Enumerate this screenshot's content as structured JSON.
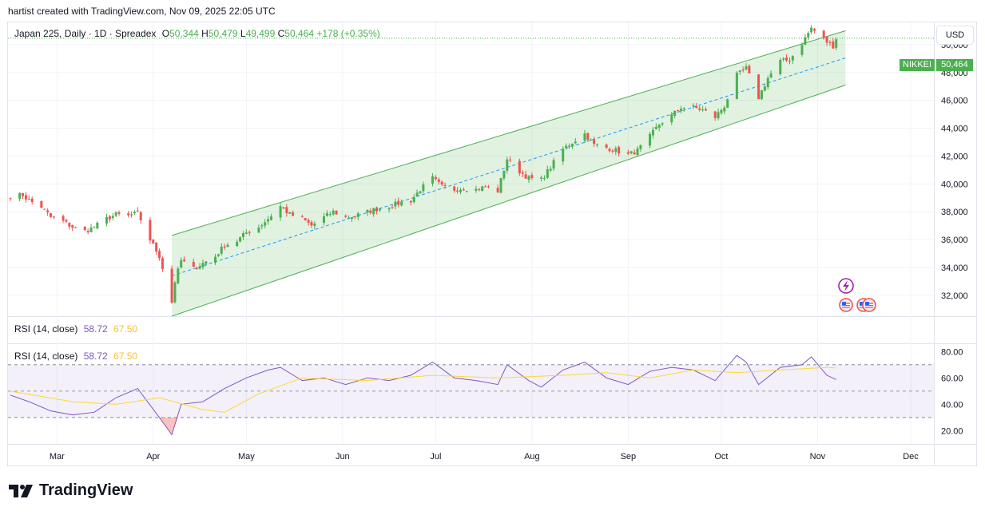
{
  "credit": "hartist created with TradingView.com, Nov 09, 2025 22:05 UTC",
  "legend": {
    "symbol": "Japan 225, Daily · 1D · Spreadex",
    "o_label": "O",
    "o_value": "50,344",
    "h_label": "H",
    "h_value": "50,479",
    "l_label": "L",
    "l_value": "49,499",
    "c_label": "C",
    "c_value": "50,464",
    "change": "+178 (+0.35%)"
  },
  "rsi_legend": {
    "label": "RSI (14, close)",
    "rsi": "58.72",
    "ma": "67.50"
  },
  "currency_button": "USD",
  "price_badge": {
    "symbol": "NIKKEI",
    "value": "50,464"
  },
  "logo_text": "TradingView",
  "colors": {
    "up": "#26a69a",
    "up_green": "#4caf50",
    "down": "#ef5350",
    "rsi": "#7e57c2",
    "rsi_ma": "#fdd835",
    "channel": "#4caf50",
    "midline": "#2196f3"
  },
  "icons": [
    "lightning-event-icon",
    "us-flag-event-icon"
  ],
  "chart_data": [
    {
      "type": "candlestick",
      "y_ticks": [
        "32,000",
        "34,000",
        "36,000",
        "38,000",
        "40,000",
        "42,000",
        "44,000",
        "46,000",
        "48,000",
        "50,000"
      ],
      "x_ticks": [
        "Mar",
        "Apr",
        "May",
        "Jun",
        "Jul",
        "Aug",
        "Sep",
        "Oct",
        "Nov",
        "Dec"
      ],
      "ylim": [
        30500,
        51600
      ],
      "grid": true,
      "last_close": 50464,
      "channel": {
        "start_date": "2025-04-07",
        "end_date": "2025-11-10",
        "upper_start": 36300,
        "upper_end": 51000,
        "lower_start": 30500,
        "lower_end": 47100
      },
      "close_series": [
        {
          "date": "2025-02-14",
          "close": 39150
        },
        {
          "date": "2025-02-18",
          "close": 39200
        },
        {
          "date": "2025-02-20",
          "close": 38800
        },
        {
          "date": "2025-02-24",
          "close": 38350
        },
        {
          "date": "2025-02-27",
          "close": 37600
        },
        {
          "date": "2025-03-03",
          "close": 37300
        },
        {
          "date": "2025-03-06",
          "close": 36900
        },
        {
          "date": "2025-03-10",
          "close": 36600
        },
        {
          "date": "2025-03-13",
          "close": 36900
        },
        {
          "date": "2025-03-17",
          "close": 37500
        },
        {
          "date": "2025-03-20",
          "close": 37800
        },
        {
          "date": "2025-03-24",
          "close": 37700
        },
        {
          "date": "2025-03-27",
          "close": 37900
        },
        {
          "date": "2025-03-31",
          "close": 36000
        },
        {
          "date": "2025-04-03",
          "close": 34800
        },
        {
          "date": "2025-04-07",
          "close": 31500
        },
        {
          "date": "2025-04-08",
          "close": 33000
        },
        {
          "date": "2025-04-10",
          "close": 34500
        },
        {
          "date": "2025-04-14",
          "close": 33900
        },
        {
          "date": "2025-04-17",
          "close": 34300
        },
        {
          "date": "2025-04-21",
          "close": 34800
        },
        {
          "date": "2025-04-24",
          "close": 35600
        },
        {
          "date": "2025-04-28",
          "close": 35900
        },
        {
          "date": "2025-05-01",
          "close": 36500
        },
        {
          "date": "2025-05-05",
          "close": 36900
        },
        {
          "date": "2025-05-08",
          "close": 37500
        },
        {
          "date": "2025-05-12",
          "close": 38400
        },
        {
          "date": "2025-05-15",
          "close": 37800
        },
        {
          "date": "2025-05-19",
          "close": 37500
        },
        {
          "date": "2025-05-22",
          "close": 37000
        },
        {
          "date": "2025-05-26",
          "close": 37600
        },
        {
          "date": "2025-05-29",
          "close": 38000
        },
        {
          "date": "2025-06-02",
          "close": 37600
        },
        {
          "date": "2025-06-05",
          "close": 37700
        },
        {
          "date": "2025-06-09",
          "close": 38000
        },
        {
          "date": "2025-06-12",
          "close": 38200
        },
        {
          "date": "2025-06-16",
          "close": 38400
        },
        {
          "date": "2025-06-19",
          "close": 38600
        },
        {
          "date": "2025-06-23",
          "close": 38800
        },
        {
          "date": "2025-06-26",
          "close": 39600
        },
        {
          "date": "2025-06-30",
          "close": 40400
        },
        {
          "date": "2025-07-03",
          "close": 39800
        },
        {
          "date": "2025-07-07",
          "close": 39600
        },
        {
          "date": "2025-07-10",
          "close": 39700
        },
        {
          "date": "2025-07-14",
          "close": 39600
        },
        {
          "date": "2025-07-17",
          "close": 39800
        },
        {
          "date": "2025-07-21",
          "close": 39500
        },
        {
          "date": "2025-07-24",
          "close": 41800
        },
        {
          "date": "2025-07-28",
          "close": 40900
        },
        {
          "date": "2025-07-31",
          "close": 40400
        },
        {
          "date": "2025-08-04",
          "close": 40300
        },
        {
          "date": "2025-08-07",
          "close": 41200
        },
        {
          "date": "2025-08-11",
          "close": 42500
        },
        {
          "date": "2025-08-14",
          "close": 43000
        },
        {
          "date": "2025-08-18",
          "close": 43600
        },
        {
          "date": "2025-08-21",
          "close": 42800
        },
        {
          "date": "2025-08-25",
          "close": 42600
        },
        {
          "date": "2025-08-28",
          "close": 42400
        },
        {
          "date": "2025-09-01",
          "close": 42100
        },
        {
          "date": "2025-09-04",
          "close": 42400
        },
        {
          "date": "2025-09-08",
          "close": 43400
        },
        {
          "date": "2025-09-11",
          "close": 44300
        },
        {
          "date": "2025-09-15",
          "close": 44900
        },
        {
          "date": "2025-09-18",
          "close": 45500
        },
        {
          "date": "2025-09-22",
          "close": 45500
        },
        {
          "date": "2025-09-25",
          "close": 45300
        },
        {
          "date": "2025-09-29",
          "close": 44800
        },
        {
          "date": "2025-10-02",
          "close": 45600
        },
        {
          "date": "2025-10-06",
          "close": 47800
        },
        {
          "date": "2025-10-09",
          "close": 48300
        },
        {
          "date": "2025-10-13",
          "close": 46200
        },
        {
          "date": "2025-10-16",
          "close": 47600
        },
        {
          "date": "2025-10-20",
          "close": 48800
        },
        {
          "date": "2025-10-23",
          "close": 48900
        },
        {
          "date": "2025-10-27",
          "close": 50100
        },
        {
          "date": "2025-10-30",
          "close": 51200
        },
        {
          "date": "2025-11-04",
          "close": 50200
        },
        {
          "date": "2025-11-06",
          "close": 49900
        },
        {
          "date": "2025-11-07",
          "close": 50464
        }
      ]
    },
    {
      "type": "line",
      "title": "RSI (14, close)",
      "y_ticks": [
        "20.00",
        "40.00",
        "60.00",
        "80.00"
      ],
      "ylim": [
        10,
        85
      ],
      "bands": [
        30,
        50,
        70
      ],
      "series": [
        {
          "name": "RSI",
          "points": [
            {
              "date": "2025-02-14",
              "v": 47
            },
            {
              "date": "2025-02-20",
              "v": 42
            },
            {
              "date": "2025-02-27",
              "v": 35
            },
            {
              "date": "2025-03-06",
              "v": 32
            },
            {
              "date": "2025-03-13",
              "v": 34
            },
            {
              "date": "2025-03-20",
              "v": 45
            },
            {
              "date": "2025-03-27",
              "v": 52
            },
            {
              "date": "2025-04-03",
              "v": 30
            },
            {
              "date": "2025-04-07",
              "v": 17
            },
            {
              "date": "2025-04-10",
              "v": 40
            },
            {
              "date": "2025-04-17",
              "v": 42
            },
            {
              "date": "2025-04-24",
              "v": 52
            },
            {
              "date": "2025-05-01",
              "v": 60
            },
            {
              "date": "2025-05-08",
              "v": 66
            },
            {
              "date": "2025-05-12",
              "v": 68
            },
            {
              "date": "2025-05-19",
              "v": 58
            },
            {
              "date": "2025-05-26",
              "v": 60
            },
            {
              "date": "2025-06-02",
              "v": 55
            },
            {
              "date": "2025-06-09",
              "v": 60
            },
            {
              "date": "2025-06-16",
              "v": 58
            },
            {
              "date": "2025-06-23",
              "v": 62
            },
            {
              "date": "2025-06-30",
              "v": 72
            },
            {
              "date": "2025-07-07",
              "v": 60
            },
            {
              "date": "2025-07-14",
              "v": 58
            },
            {
              "date": "2025-07-21",
              "v": 55
            },
            {
              "date": "2025-07-24",
              "v": 70
            },
            {
              "date": "2025-07-31",
              "v": 58
            },
            {
              "date": "2025-08-04",
              "v": 53
            },
            {
              "date": "2025-08-11",
              "v": 66
            },
            {
              "date": "2025-08-18",
              "v": 72
            },
            {
              "date": "2025-08-25",
              "v": 60
            },
            {
              "date": "2025-09-01",
              "v": 55
            },
            {
              "date": "2025-09-08",
              "v": 65
            },
            {
              "date": "2025-09-15",
              "v": 68
            },
            {
              "date": "2025-09-22",
              "v": 66
            },
            {
              "date": "2025-09-29",
              "v": 58
            },
            {
              "date": "2025-10-06",
              "v": 77
            },
            {
              "date": "2025-10-09",
              "v": 72
            },
            {
              "date": "2025-10-13",
              "v": 55
            },
            {
              "date": "2025-10-20",
              "v": 68
            },
            {
              "date": "2025-10-27",
              "v": 70
            },
            {
              "date": "2025-10-30",
              "v": 76
            },
            {
              "date": "2025-11-04",
              "v": 62
            },
            {
              "date": "2025-11-07",
              "v": 58.72
            }
          ]
        },
        {
          "name": "RSI MA",
          "points": [
            {
              "date": "2025-02-14",
              "v": 50
            },
            {
              "date": "2025-03-06",
              "v": 42
            },
            {
              "date": "2025-03-20",
              "v": 40
            },
            {
              "date": "2025-04-03",
              "v": 45
            },
            {
              "date": "2025-04-17",
              "v": 36
            },
            {
              "date": "2025-04-24",
              "v": 34
            },
            {
              "date": "2025-05-05",
              "v": 48
            },
            {
              "date": "2025-05-19",
              "v": 60
            },
            {
              "date": "2025-06-09",
              "v": 58
            },
            {
              "date": "2025-06-30",
              "v": 62
            },
            {
              "date": "2025-07-21",
              "v": 60
            },
            {
              "date": "2025-08-11",
              "v": 62
            },
            {
              "date": "2025-08-25",
              "v": 64
            },
            {
              "date": "2025-09-08",
              "v": 60
            },
            {
              "date": "2025-09-22",
              "v": 66
            },
            {
              "date": "2025-10-06",
              "v": 64
            },
            {
              "date": "2025-10-20",
              "v": 66
            },
            {
              "date": "2025-11-04",
              "v": 68
            },
            {
              "date": "2025-11-07",
              "v": 67.5
            }
          ]
        }
      ]
    }
  ]
}
